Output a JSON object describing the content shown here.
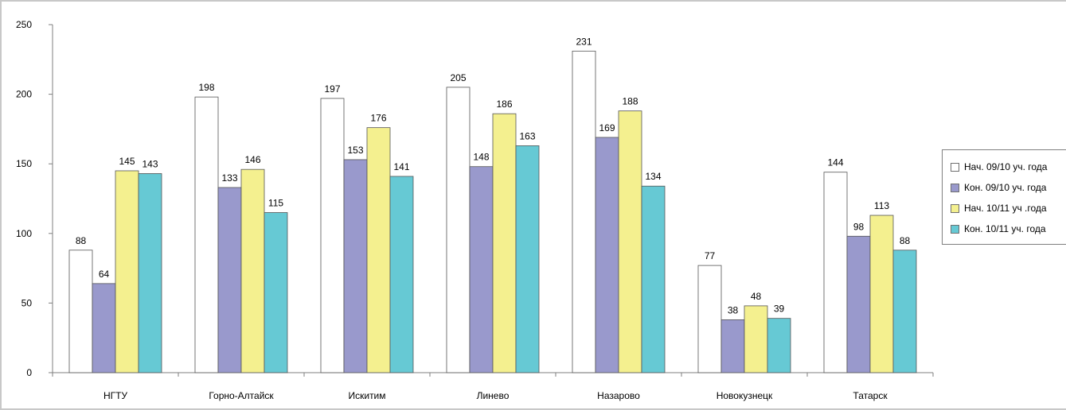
{
  "chart_data": {
    "type": "bar",
    "title": "",
    "xlabel": "",
    "ylabel": "",
    "ylim": [
      0,
      250
    ],
    "yticks": [
      0,
      50,
      100,
      150,
      200,
      250
    ],
    "categories": [
      "НГТУ",
      "Горно-Алтайск",
      "Искитим",
      "Линево",
      "Назарово",
      "Новокузнецк",
      "Татарск"
    ],
    "series": [
      {
        "name": "Нач. 09/10 уч. года",
        "color": "#ffffff",
        "values": [
          88,
          198,
          197,
          205,
          231,
          77,
          144
        ]
      },
      {
        "name": "Кон. 09/10 уч. года",
        "color": "#9999cc",
        "values": [
          64,
          133,
          153,
          148,
          169,
          38,
          98
        ]
      },
      {
        "name": "Нач. 10/11 уч .года",
        "color": "#f4f08f",
        "values": [
          145,
          146,
          176,
          186,
          188,
          48,
          113
        ]
      },
      {
        "name": "Кон. 10/11 уч. года",
        "color": "#66c9d4",
        "values": [
          143,
          115,
          141,
          163,
          134,
          39,
          88
        ]
      }
    ],
    "grid": false,
    "legend_position": "right"
  }
}
